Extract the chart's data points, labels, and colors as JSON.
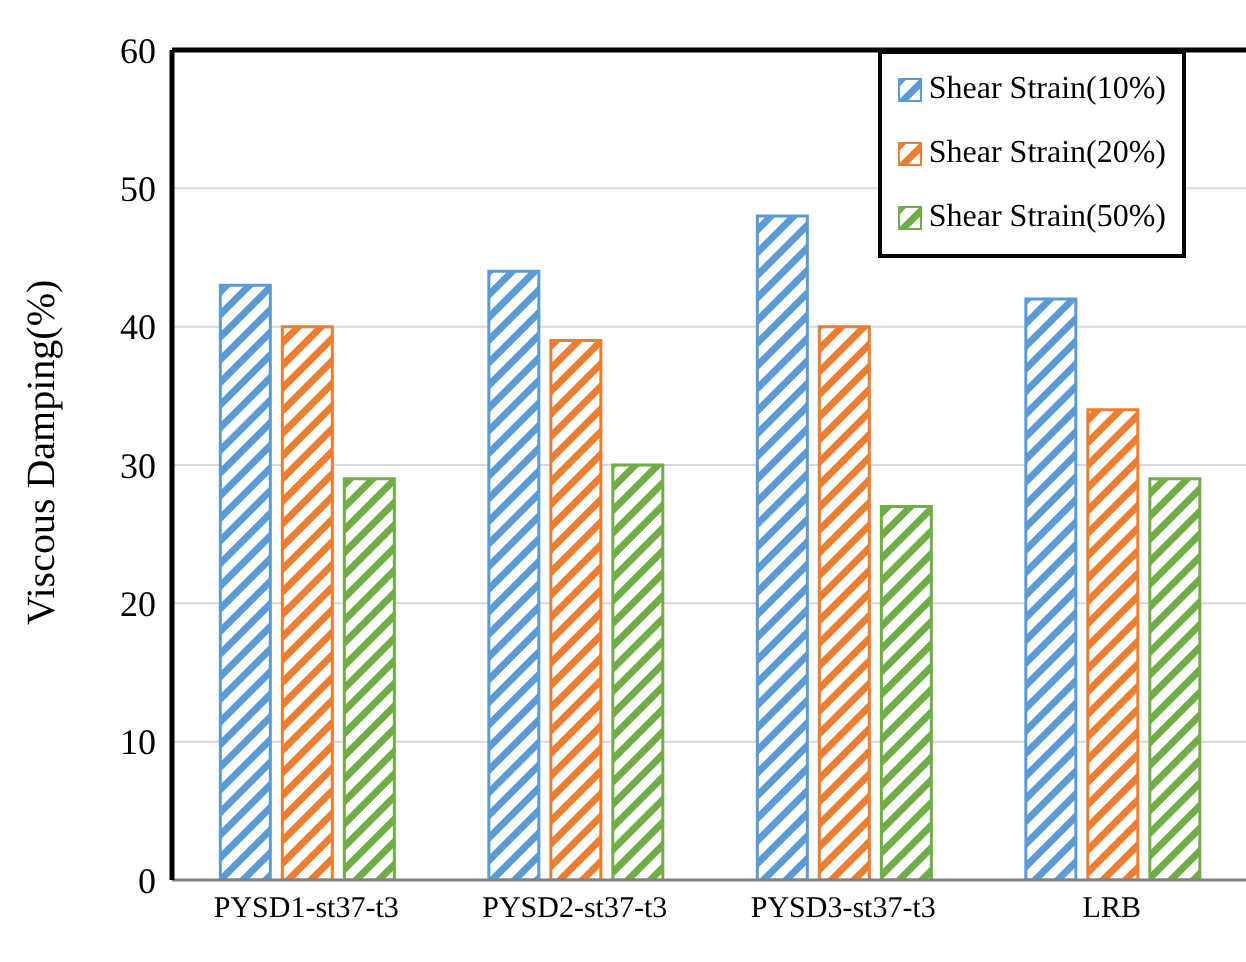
{
  "chart_data": {
    "type": "bar",
    "ylabel": "Viscous Damping(%)",
    "categories": [
      "PYSD1-st37-t3",
      "PYSD2-st37-t3",
      "PYSD3-st37-t3",
      "LRB"
    ],
    "series": [
      {
        "name": "Shear Strain(10%)",
        "color": "#5b9bd5",
        "values": [
          43,
          44,
          48,
          42
        ]
      },
      {
        "name": "Shear Strain(20%)",
        "color": "#ed7d31",
        "values": [
          40,
          39,
          40,
          34
        ]
      },
      {
        "name": "Shear Strain(50%)",
        "color": "#70ad47",
        "values": [
          29,
          30,
          27,
          29
        ]
      }
    ],
    "ylim": [
      0,
      60
    ],
    "yticks": [
      0,
      10,
      20,
      30,
      40,
      50,
      60
    ],
    "grid": "y",
    "legend": "top right"
  }
}
